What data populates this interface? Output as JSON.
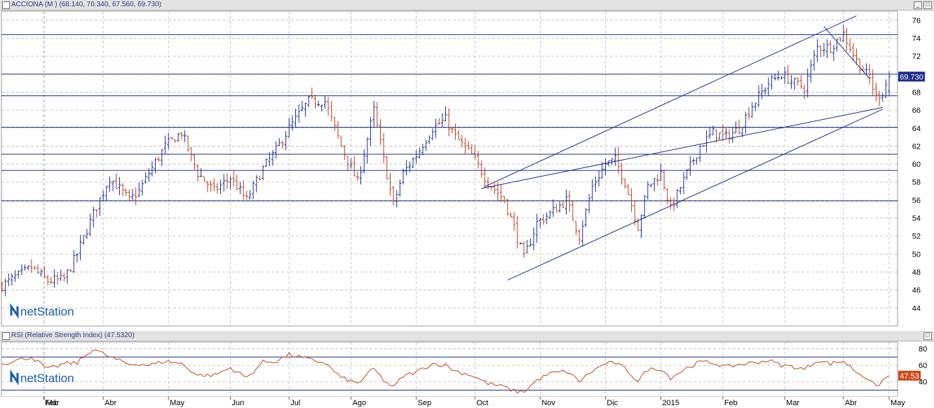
{
  "price_panel": {
    "title": "ACCIONA (M ) (68.140, 70.340, 67.560, 69.730)",
    "last_value_label": "69.730"
  },
  "rsi_panel": {
    "title": "RSI (Relative Strength Index) (47.5320)",
    "last_value_label": "47.53"
  },
  "watermark": "netStation",
  "window_buttons": {
    "minimize": "_",
    "maximize": "□"
  },
  "colors": {
    "up_bar": "#1c2d8a",
    "down_bar": "#b0401e",
    "rsi_line": "#b54a1c",
    "grid": "#b8b8b8",
    "hline": "#1c2d8a",
    "title_text": "#2b3a7a",
    "last_label_bg": "#1c2d8a",
    "rsi_label_bg": "#cc4a1a"
  },
  "chart_data": [
    {
      "type": "ohlc",
      "title": "ACCIONA (M )",
      "ylim": [
        42,
        77
      ],
      "y_ticks": [
        44,
        46,
        48,
        50,
        52,
        54,
        56,
        58,
        60,
        62,
        64,
        66,
        68,
        70,
        72,
        74,
        76
      ],
      "x_month_labels": [
        "Feb",
        "Mar",
        "Abr",
        "May",
        "Jun",
        "Jul",
        "Ago",
        "Sep",
        "Oct",
        "Nov",
        "Dic",
        "2015",
        "Feb",
        "Mar",
        "Abr",
        "May"
      ],
      "close_keypoints": [
        [
          0,
          46.5
        ],
        [
          9,
          48.5
        ],
        [
          14,
          47
        ],
        [
          19,
          47.2
        ],
        [
          23,
          50
        ],
        [
          28,
          54.5
        ],
        [
          33,
          58.5
        ],
        [
          39,
          56
        ],
        [
          42,
          57
        ],
        [
          45,
          59
        ],
        [
          50,
          62
        ],
        [
          55,
          63.5
        ],
        [
          60,
          59
        ],
        [
          65,
          57
        ],
        [
          70,
          58.5
        ],
        [
          75,
          56
        ],
        [
          80,
          59.5
        ],
        [
          84,
          61.5
        ],
        [
          88,
          64
        ],
        [
          94,
          67
        ],
        [
          99,
          67
        ],
        [
          104,
          62
        ],
        [
          109,
          58
        ],
        [
          114,
          66
        ],
        [
          117,
          60.5
        ],
        [
          120,
          55.5
        ],
        [
          123,
          59
        ],
        [
          127,
          61
        ],
        [
          132,
          64
        ],
        [
          136,
          65
        ],
        [
          139,
          63
        ],
        [
          144,
          61
        ],
        [
          149,
          58
        ],
        [
          154,
          56
        ],
        [
          157,
          53
        ],
        [
          160,
          49.5
        ],
        [
          164,
          53.5
        ],
        [
          168,
          54.5
        ],
        [
          173,
          56
        ],
        [
          177,
          52
        ],
        [
          181,
          57.5
        ],
        [
          185,
          60
        ],
        [
          188,
          60.5
        ],
        [
          191,
          58
        ],
        [
          195,
          53
        ],
        [
          198,
          57.5
        ],
        [
          202,
          59
        ],
        [
          205,
          55
        ],
        [
          210,
          59
        ],
        [
          214,
          62
        ],
        [
          218,
          63.5
        ],
        [
          222,
          63
        ],
        [
          226,
          64
        ],
        [
          230,
          66.5
        ],
        [
          235,
          69
        ],
        [
          239,
          70
        ],
        [
          243,
          69
        ],
        [
          246,
          68.5
        ],
        [
          250,
          73
        ],
        [
          254,
          73
        ],
        [
          258,
          74.5
        ],
        [
          262,
          71.5
        ],
        [
          266,
          69.5
        ],
        [
          268,
          67.5
        ],
        [
          270,
          68
        ],
        [
          272,
          69.73
        ]
      ],
      "close_last": 69.73,
      "last_ohlc": {
        "open": 68.14,
        "high": 70.34,
        "low": 67.56,
        "close": 69.73
      },
      "horizontal_levels": [
        74.4,
        70.0,
        67.6,
        64.1,
        61.1,
        59.3,
        55.9
      ],
      "trendlines": [
        {
          "from": [
            147,
            57.3
          ],
          "to": [
            270,
            66.3
          ]
        },
        {
          "from": [
            155,
            47.1
          ],
          "to": [
            270,
            66.1
          ]
        },
        {
          "from": [
            148,
            57.5
          ],
          "to": [
            262,
            76.5
          ]
        },
        {
          "from": [
            252,
            75.3
          ],
          "to": [
            266,
            69.5
          ]
        }
      ]
    },
    {
      "type": "line",
      "title": "RSI (Relative Strength Index)",
      "ylim": [
        22,
        88
      ],
      "y_ticks": [
        40,
        60,
        80
      ],
      "horizontal_levels": [
        70,
        30
      ],
      "series": [
        {
          "name": "RSI",
          "keypoints": [
            [
              0,
              62
            ],
            [
              9,
              70
            ],
            [
              14,
              55
            ],
            [
              19,
              62
            ],
            [
              23,
              63
            ],
            [
              28,
              80
            ],
            [
              33,
              70
            ],
            [
              39,
              61
            ],
            [
              42,
              62
            ],
            [
              45,
              60
            ],
            [
              50,
              65
            ],
            [
              55,
              62
            ],
            [
              60,
              48
            ],
            [
              65,
              48
            ],
            [
              70,
              57
            ],
            [
              75,
              45
            ],
            [
              80,
              64
            ],
            [
              84,
              65
            ],
            [
              88,
              73
            ],
            [
              94,
              67
            ],
            [
              99,
              63
            ],
            [
              104,
              45
            ],
            [
              109,
              38
            ],
            [
              114,
              56
            ],
            [
              117,
              42
            ],
            [
              120,
              33
            ],
            [
              123,
              47
            ],
            [
              127,
              52
            ],
            [
              132,
              62
            ],
            [
              136,
              60
            ],
            [
              139,
              53
            ],
            [
              144,
              48
            ],
            [
              149,
              38
            ],
            [
              154,
              34
            ],
            [
              157,
              29
            ],
            [
              160,
              28
            ],
            [
              164,
              42
            ],
            [
              168,
              50
            ],
            [
              173,
              53
            ],
            [
              177,
              41
            ],
            [
              181,
              53
            ],
            [
              185,
              62
            ],
            [
              188,
              63
            ],
            [
              191,
              56
            ],
            [
              195,
              41
            ],
            [
              198,
              55
            ],
            [
              202,
              56
            ],
            [
              205,
              45
            ],
            [
              210,
              57
            ],
            [
              214,
              64
            ],
            [
              218,
              63
            ],
            [
              222,
              58
            ],
            [
              226,
              61
            ],
            [
              230,
              63
            ],
            [
              235,
              66
            ],
            [
              239,
              60
            ],
            [
              243,
              58
            ],
            [
              246,
              55
            ],
            [
              250,
              66
            ],
            [
              254,
              62
            ],
            [
              258,
              65
            ],
            [
              262,
              52
            ],
            [
              266,
              43
            ],
            [
              268,
              33
            ],
            [
              270,
              42
            ],
            [
              272,
              47.53
            ]
          ]
        }
      ],
      "last": 47.53
    }
  ]
}
